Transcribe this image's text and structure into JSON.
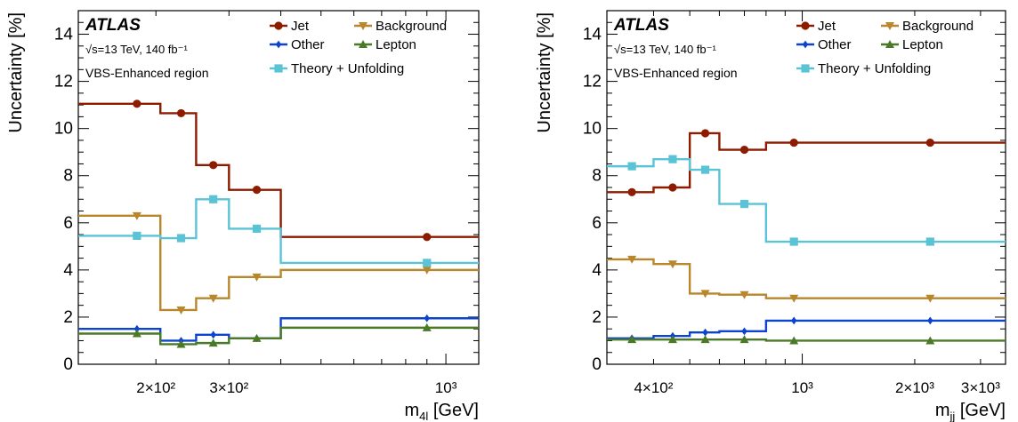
{
  "chart_data": [
    {
      "type": "line",
      "panel": "left",
      "experiment": "ATLAS",
      "energy_line": "√s=13 TeV,  140 fb⁻¹",
      "region": "VBS-Enhanced region",
      "ylabel": "Uncertainty [%]",
      "xlabel": "m4l [GeV]",
      "xlabel_main": "m",
      "xlabel_sub": "4l",
      "xlabel_unit": " [GeV]",
      "x_scale": "log",
      "xlim": [
        130,
        1200
      ],
      "ylim": [
        0,
        15
      ],
      "y_ticks": [
        "0",
        "2",
        "4",
        "6",
        "8",
        "10",
        "12",
        "14"
      ],
      "x_tick_labels": [
        {
          "value": 200,
          "label": "2×10²"
        },
        {
          "value": 300,
          "label": "3×10²"
        },
        {
          "value": 1000,
          "label": "10³"
        }
      ],
      "bin_edges": [
        130,
        205,
        250,
        300,
        400,
        1200
      ],
      "marker_x": [
        180,
        230,
        275,
        350,
        900
      ],
      "legend_position": "top-right",
      "series": [
        {
          "name": "Jet",
          "color": "#8c1b00",
          "marker": "circle",
          "values": [
            11.05,
            10.65,
            8.45,
            7.4,
            5.4
          ]
        },
        {
          "name": "Background",
          "color": "#b8862b",
          "marker": "triangle-down",
          "values": [
            6.3,
            2.3,
            2.8,
            3.7,
            4.0
          ]
        },
        {
          "name": "Other",
          "color": "#0c44d0",
          "marker": "diamond",
          "values": [
            1.5,
            1.0,
            1.25,
            1.1,
            1.95
          ]
        },
        {
          "name": "Lepton",
          "color": "#4a7a28",
          "marker": "triangle-up",
          "values": [
            1.3,
            0.85,
            0.9,
            1.1,
            1.55
          ]
        },
        {
          "name": "Theory + Unfolding",
          "color": "#5bc3d6",
          "marker": "square",
          "values": [
            5.45,
            5.35,
            7.0,
            5.75,
            4.3
          ]
        }
      ]
    },
    {
      "type": "line",
      "panel": "right",
      "experiment": "ATLAS",
      "energy_line": "√s=13 TeV,  140 fb⁻¹",
      "region": "VBS-Enhanced region",
      "ylabel": "Uncertainty [%]",
      "xlabel": "mjj [GeV]",
      "xlabel_main": "m",
      "xlabel_sub": "jj",
      "xlabel_unit": " [GeV]",
      "x_scale": "log",
      "xlim": [
        300,
        3500
      ],
      "ylim": [
        0,
        15
      ],
      "y_ticks": [
        "0",
        "2",
        "4",
        "6",
        "8",
        "10",
        "12",
        "14"
      ],
      "x_tick_labels": [
        {
          "value": 400,
          "label": "4×10²"
        },
        {
          "value": 1000,
          "label": "10³"
        },
        {
          "value": 2000,
          "label": "2×10³"
        },
        {
          "value": 3000,
          "label": "3×10³"
        }
      ],
      "bin_edges": [
        300,
        400,
        500,
        600,
        800,
        1100,
        3500
      ],
      "marker_x": [
        350,
        450,
        550,
        700,
        950,
        2200
      ],
      "legend_position": "top-right",
      "series": [
        {
          "name": "Jet",
          "color": "#8c1b00",
          "marker": "circle",
          "values": [
            7.3,
            7.5,
            9.8,
            9.1,
            9.4,
            9.4
          ]
        },
        {
          "name": "Background",
          "color": "#b8862b",
          "marker": "triangle-down",
          "values": [
            4.45,
            4.25,
            3.0,
            2.95,
            2.8,
            2.8
          ]
        },
        {
          "name": "Other",
          "color": "#0c44d0",
          "marker": "diamond",
          "values": [
            1.1,
            1.2,
            1.35,
            1.4,
            1.85,
            1.85
          ]
        },
        {
          "name": "Lepton",
          "color": "#4a7a28",
          "marker": "triangle-up",
          "values": [
            1.05,
            1.05,
            1.05,
            1.05,
            1.0,
            1.0
          ]
        },
        {
          "name": "Theory + Unfolding",
          "color": "#5bc3d6",
          "marker": "square",
          "values": [
            8.4,
            8.7,
            8.25,
            6.8,
            5.2,
            5.2
          ]
        }
      ]
    }
  ]
}
